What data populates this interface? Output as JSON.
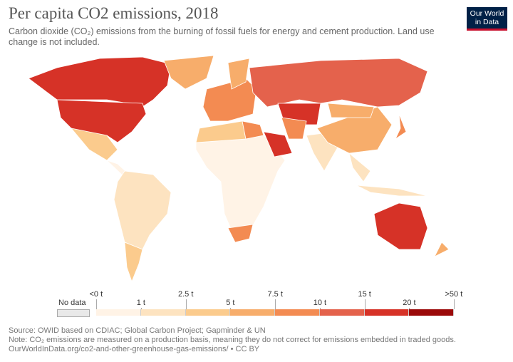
{
  "header": {
    "title": "Per capita CO2 emissions, 2018",
    "subtitle": "Carbon dioxide (CO₂) emissions from the burning of fossil fuels for energy and cement production. Land use change is not included.",
    "logo": "Our World in Data"
  },
  "legend": {
    "no_data": "No data",
    "no_data_color": "#e9e9e9",
    "upper_labels": [
      "<0 t",
      "2.5 t",
      "7.5 t",
      "15 t",
      ">50 t"
    ],
    "lower_labels": [
      "1 t",
      "5 t",
      "10 t",
      "20 t"
    ],
    "colors": [
      "#fff3e6",
      "#fde3c0",
      "#fbcb8d",
      "#f7ad6b",
      "#f38b52",
      "#e4624c",
      "#d63227",
      "#9b0a0a"
    ]
  },
  "map": {
    "ocean": "#ffffff",
    "border": "#ffffff",
    "regions": [
      {
        "id": "canada",
        "bin": 6
      },
      {
        "id": "usa",
        "bin": 6
      },
      {
        "id": "greenland",
        "bin": 3
      },
      {
        "id": "mexico",
        "bin": 2
      },
      {
        "id": "central-america",
        "bin": 0
      },
      {
        "id": "south-america",
        "bin": 1
      },
      {
        "id": "argentina-chile",
        "bin": 2
      },
      {
        "id": "europe",
        "bin": 4
      },
      {
        "id": "scandinavia",
        "bin": 3
      },
      {
        "id": "russia",
        "bin": 5
      },
      {
        "id": "kazakhstan",
        "bin": 6
      },
      {
        "id": "africa",
        "bin": 0
      },
      {
        "id": "north-africa",
        "bin": 2
      },
      {
        "id": "libya",
        "bin": 4
      },
      {
        "id": "south-africa",
        "bin": 4
      },
      {
        "id": "saudi-arabia",
        "bin": 6
      },
      {
        "id": "iran",
        "bin": 4
      },
      {
        "id": "india",
        "bin": 1
      },
      {
        "id": "china",
        "bin": 3
      },
      {
        "id": "mongolia",
        "bin": 3
      },
      {
        "id": "southeast-asia",
        "bin": 1
      },
      {
        "id": "indonesia",
        "bin": 1
      },
      {
        "id": "japan",
        "bin": 4
      },
      {
        "id": "australia",
        "bin": 6
      },
      {
        "id": "new-zealand",
        "bin": 3
      }
    ]
  },
  "footer": {
    "source": "Source: OWID based on CDIAC; Global Carbon Project; Gapminder & UN",
    "note": "Note: CO₂ emissions are measured on a production basis, meaning they do not correct for emissions embedded in traded goods.",
    "url": "OurWorldInData.org/co2-and-other-greenhouse-gas-emissions/ • CC BY"
  }
}
